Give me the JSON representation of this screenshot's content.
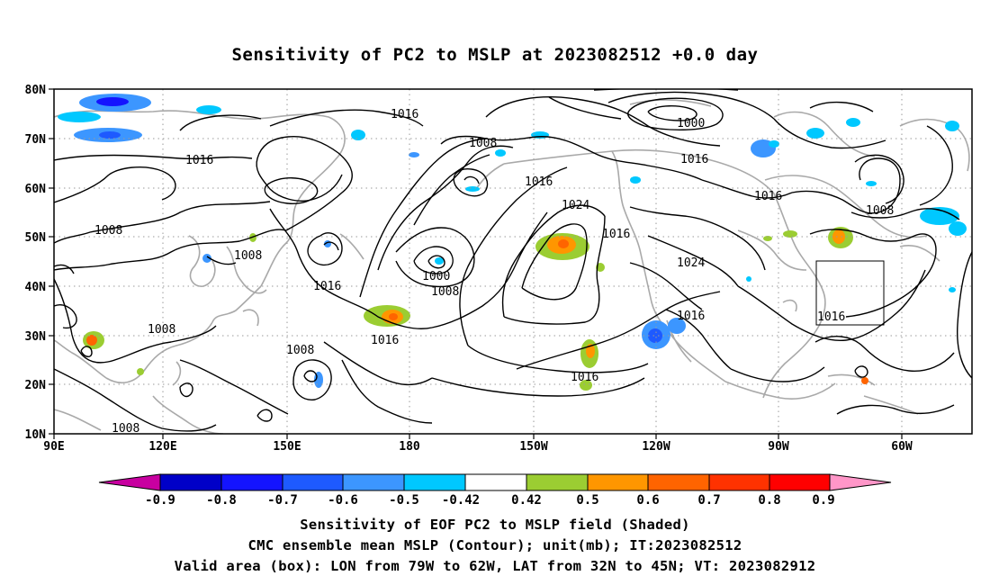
{
  "title": "Sensitivity of PC2 to MSLP at 2023082512 +0.0 day",
  "map": {
    "lat_labels": [
      "80N",
      "70N",
      "60N",
      "50N",
      "40N",
      "30N",
      "20N",
      "10N"
    ],
    "lon_labels": [
      "90E",
      "120E",
      "150E",
      "180",
      "150W",
      "120W",
      "90W",
      "60W"
    ],
    "contour_labels": [
      "1016",
      "1016",
      "1008",
      "1008",
      "1016",
      "1008",
      "1016",
      "1008",
      "1016",
      "1024",
      "1016",
      "1000",
      "1008",
      "1016",
      "1008",
      "1008",
      "1016",
      "1024",
      "1016",
      "1016",
      "1016",
      "1008",
      "1016",
      "1000",
      "1008"
    ],
    "valid_box": {
      "lon_from": "79W",
      "lon_to": "62W",
      "lat_from": "32N",
      "lat_to": "45N"
    },
    "colors": {
      "neg_090": "#c800a0",
      "neg_080": "#0000c8",
      "neg_070": "#1414ff",
      "neg_060": "#1e5aff",
      "neg_050": "#3c96ff",
      "neg_042": "#00c8ff",
      "neutral": "#ffffff",
      "pos_042": "#9bcd32",
      "pos_050": "#ff9600",
      "pos_060": "#ff6400",
      "pos_070": "#ff3200",
      "pos_080": "#ff0000",
      "pos_090": "#ff96c8"
    }
  },
  "colorbar": {
    "labels": [
      "-0.9",
      "-0.8",
      "-0.7",
      "-0.6",
      "-0.5",
      "-0.42",
      "0.42",
      "0.5",
      "0.6",
      "0.7",
      "0.8",
      "0.9"
    ]
  },
  "captions": {
    "line1": "Sensitivity of EOF PC2 to MSLP field (Shaded)",
    "line2": "CMC ensemble mean MSLP (Contour); unit(mb); IT:2023082512",
    "line3": "Valid area (box): LON from 79W to 62W, LAT from 32N to 45N; VT: 2023082912"
  }
}
